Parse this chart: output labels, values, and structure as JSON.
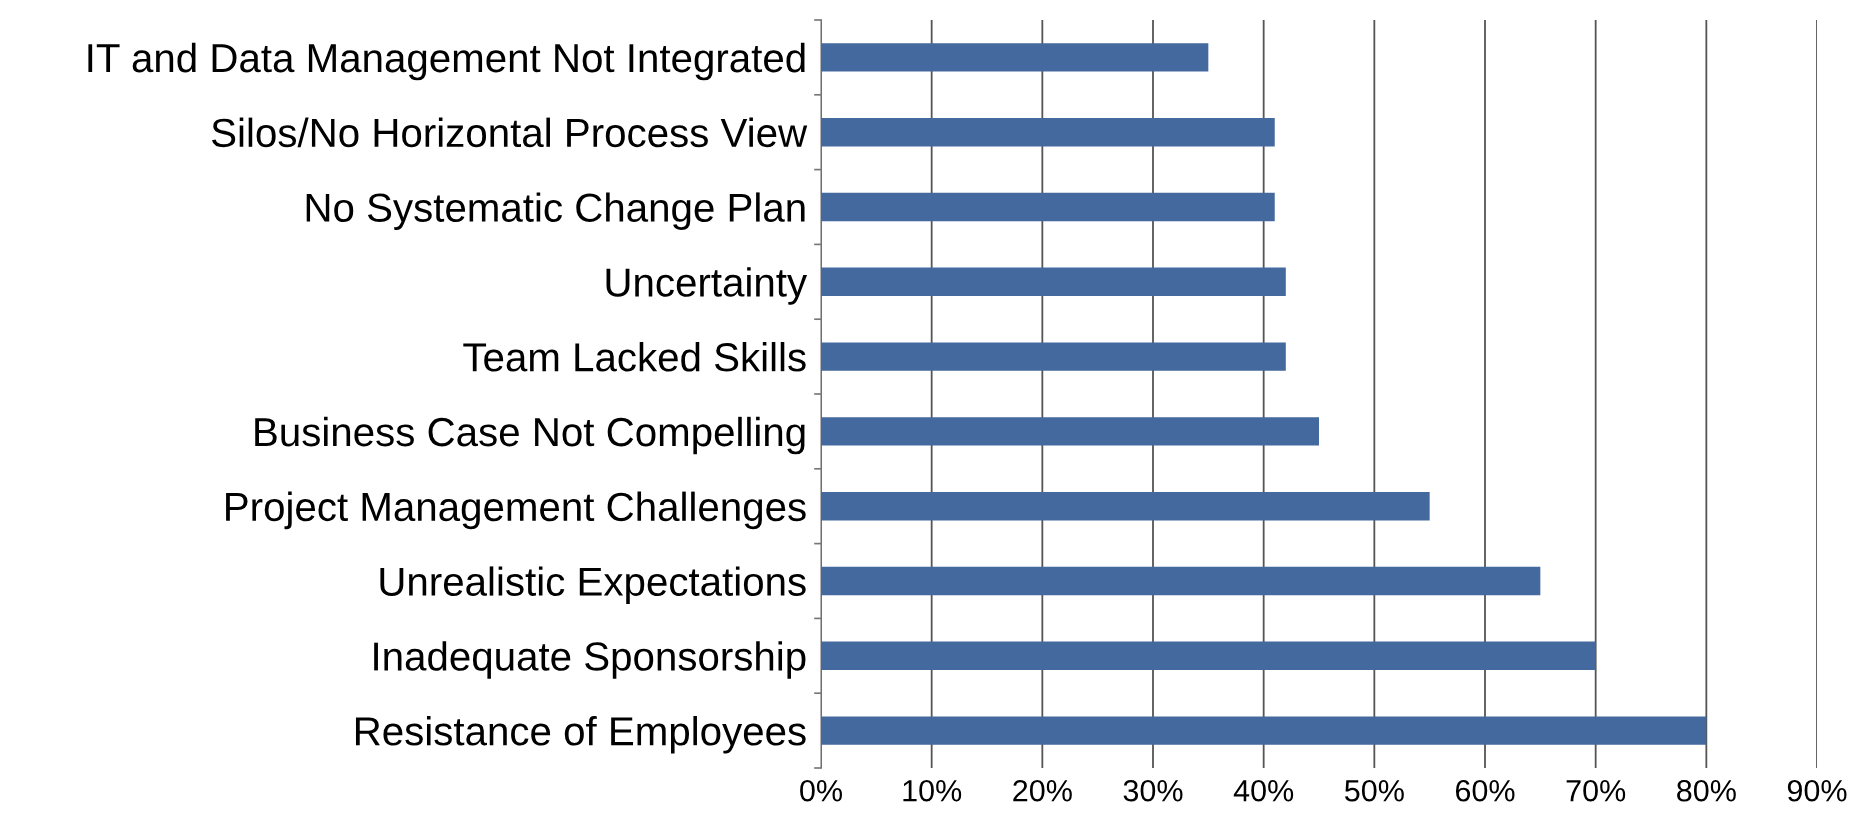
{
  "chart_data": {
    "type": "bar",
    "orientation": "horizontal",
    "categories": [
      "IT and Data Management Not Integrated",
      "Silos/No Horizontal Process View",
      "No Systematic Change Plan",
      "Uncertainty",
      "Team Lacked Skills",
      "Business Case Not Compelling",
      "Project Management Challenges",
      "Unrealistic Expectations",
      "Inadequate Sponsorship",
      "Resistance of Employees"
    ],
    "values": [
      0.35,
      0.41,
      0.41,
      0.42,
      0.42,
      0.45,
      0.55,
      0.65,
      0.7,
      0.8
    ],
    "color": "#44699e",
    "xlim": [
      0,
      0.9
    ],
    "xticks": [
      {
        "value": 0,
        "label": "0%"
      },
      {
        "value": 0.1,
        "label": "10%"
      },
      {
        "value": 0.2,
        "label": "20%"
      },
      {
        "value": 0.3,
        "label": "30%"
      },
      {
        "value": 0.4,
        "label": "40%"
      },
      {
        "value": 0.5,
        "label": "50%"
      },
      {
        "value": 0.6,
        "label": "60%"
      },
      {
        "value": 0.7,
        "label": "70%"
      },
      {
        "value": 0.8,
        "label": "80%"
      },
      {
        "value": 0.9,
        "label": "90%"
      }
    ],
    "grid": "x"
  }
}
